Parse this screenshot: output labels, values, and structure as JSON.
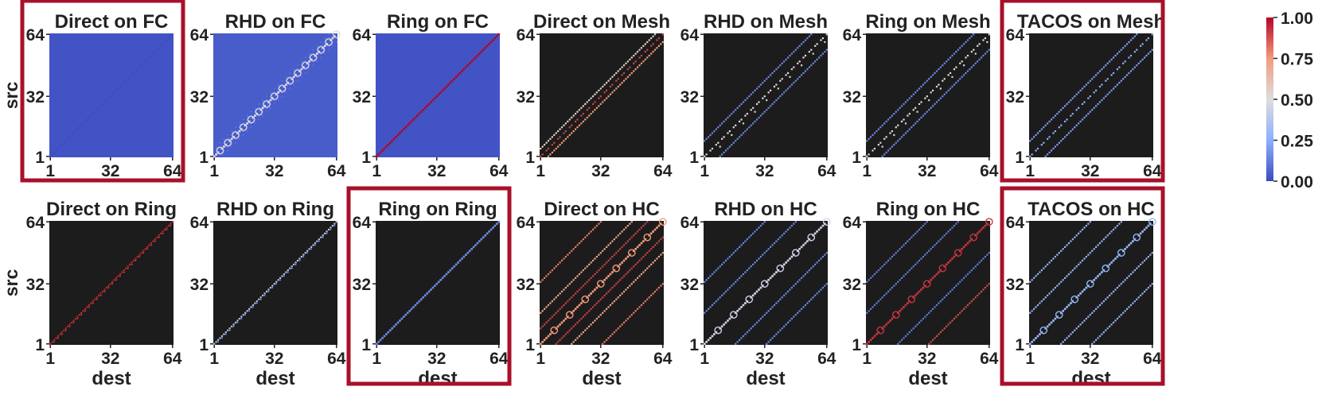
{
  "chart_data": [
    {
      "type": "heatmap",
      "title": "Direct on FC",
      "xlabel": "",
      "ylabel": "src",
      "x_ticks": [
        "1",
        "32",
        "64"
      ],
      "y_ticks": [
        "1",
        "32",
        "64"
      ],
      "x_range": [
        1,
        64
      ],
      "y_range": [
        1,
        64
      ],
      "background_value": 0.02,
      "highlighted": true,
      "bands": [
        {
          "offset": 0,
          "value": 0.0,
          "style": "dots"
        }
      ]
    },
    {
      "type": "heatmap",
      "title": "RHD on FC",
      "xlabel": "",
      "ylabel": "",
      "x_ticks": [
        "1",
        "32",
        "64"
      ],
      "y_ticks": [
        "1",
        "32",
        "64"
      ],
      "x_range": [
        1,
        64
      ],
      "y_range": [
        1,
        64
      ],
      "background_value": 0.04,
      "highlighted": false,
      "bands": [
        {
          "offset": 0,
          "value": 0.5,
          "style": "rings",
          "period": 4
        },
        {
          "offset": 2,
          "value": 0.2,
          "style": "faint"
        },
        {
          "offset": -2,
          "value": 0.2,
          "style": "faint"
        },
        {
          "offset": 4,
          "value": 0.12,
          "style": "faint"
        },
        {
          "offset": -4,
          "value": 0.12,
          "style": "faint"
        }
      ]
    },
    {
      "type": "heatmap",
      "title": "Ring on FC",
      "xlabel": "",
      "ylabel": "",
      "x_ticks": [
        "1",
        "32",
        "64"
      ],
      "y_ticks": [
        "1",
        "32",
        "64"
      ],
      "x_range": [
        1,
        64
      ],
      "y_range": [
        1,
        64
      ],
      "background_value": 0.02,
      "highlighted": false,
      "bands": [
        {
          "offset": 0,
          "value": 1.0,
          "style": "line"
        }
      ]
    },
    {
      "type": "heatmap",
      "title": "Direct on Mesh",
      "xlabel": "",
      "ylabel": "",
      "x_ticks": [
        "1",
        "32",
        "64"
      ],
      "y_ticks": [
        "1",
        "32",
        "64"
      ],
      "x_range": [
        1,
        64
      ],
      "y_range": [
        1,
        64
      ],
      "background_value": null,
      "highlighted": false,
      "bands": [
        {
          "offset": 0,
          "value": 0.9,
          "style": "dashes",
          "period": 3
        },
        {
          "offset": 4,
          "value": 0.75,
          "style": "dots"
        },
        {
          "offset": -4,
          "value": 0.55,
          "style": "dots"
        }
      ]
    },
    {
      "type": "heatmap",
      "title": "RHD on Mesh",
      "xlabel": "",
      "ylabel": "",
      "x_ticks": [
        "1",
        "32",
        "64"
      ],
      "y_ticks": [
        "1",
        "32",
        "64"
      ],
      "x_range": [
        1,
        64
      ],
      "y_range": [
        1,
        64
      ],
      "background_value": null,
      "highlighted": false,
      "bands": [
        {
          "offset": 0,
          "value": 0.5,
          "style": "dashes",
          "period": 3
        },
        {
          "offset": 8,
          "value": 0.15,
          "style": "dots"
        },
        {
          "offset": -8,
          "value": 0.15,
          "style": "dots"
        },
        {
          "offset": 3,
          "value": 0.45,
          "style": "sparse"
        }
      ]
    },
    {
      "type": "heatmap",
      "title": "Ring on Mesh",
      "xlabel": "",
      "ylabel": "",
      "x_ticks": [
        "1",
        "32",
        "64"
      ],
      "y_ticks": [
        "1",
        "32",
        "64"
      ],
      "x_range": [
        1,
        64
      ],
      "y_range": [
        1,
        64
      ],
      "background_value": null,
      "highlighted": false,
      "bands": [
        {
          "offset": 0,
          "value": 0.5,
          "style": "dashes",
          "period": 3
        },
        {
          "offset": 8,
          "value": 0.15,
          "style": "dots"
        },
        {
          "offset": -8,
          "value": 0.15,
          "style": "dots"
        },
        {
          "offset": 3,
          "value": 0.45,
          "style": "sparse"
        }
      ]
    },
    {
      "type": "heatmap",
      "title": "TACOS on Mesh",
      "xlabel": "",
      "ylabel": "",
      "x_ticks": [
        "1",
        "32",
        "64"
      ],
      "y_ticks": [
        "1",
        "32",
        "64"
      ],
      "x_range": [
        1,
        64
      ],
      "y_range": [
        1,
        64
      ],
      "background_value": null,
      "highlighted": true,
      "bands": [
        {
          "offset": 0,
          "value": 0.25,
          "style": "dashes",
          "period": 3
        },
        {
          "offset": 8,
          "value": 0.2,
          "style": "dots"
        },
        {
          "offset": -8,
          "value": 0.2,
          "style": "dots"
        }
      ]
    },
    {
      "type": "heatmap",
      "title": "Direct on Ring",
      "xlabel": "dest",
      "ylabel": "src",
      "x_ticks": [
        "1",
        "32",
        "64"
      ],
      "y_ticks": [
        "1",
        "32",
        "64"
      ],
      "x_range": [
        1,
        64
      ],
      "y_range": [
        1,
        64
      ],
      "background_value": null,
      "highlighted": false,
      "bands": [
        {
          "offset": 0,
          "value": 0.95,
          "style": "dots"
        },
        {
          "offset": 1,
          "value": 0.85,
          "style": "faint"
        }
      ]
    },
    {
      "type": "heatmap",
      "title": "RHD on Ring",
      "xlabel": "dest",
      "ylabel": "",
      "x_ticks": [
        "1",
        "32",
        "64"
      ],
      "y_ticks": [
        "1",
        "32",
        "64"
      ],
      "x_range": [
        1,
        64
      ],
      "y_range": [
        1,
        64
      ],
      "background_value": null,
      "highlighted": false,
      "bands": [
        {
          "offset": 0,
          "value": 0.35,
          "style": "dots"
        },
        {
          "offset": 1,
          "value": 0.3,
          "style": "faint"
        }
      ]
    },
    {
      "type": "heatmap",
      "title": "Ring on Ring",
      "xlabel": "dest",
      "ylabel": "",
      "x_ticks": [
        "1",
        "32",
        "64"
      ],
      "y_ticks": [
        "1",
        "32",
        "64"
      ],
      "x_range": [
        1,
        64
      ],
      "y_range": [
        1,
        64
      ],
      "background_value": null,
      "highlighted": true,
      "bands": [
        {
          "offset": 0,
          "value": 0.15,
          "style": "line"
        }
      ]
    },
    {
      "type": "heatmap",
      "title": "Direct on HC",
      "xlabel": "dest",
      "ylabel": "",
      "x_ticks": [
        "1",
        "32",
        "64"
      ],
      "y_ticks": [
        "1",
        "32",
        "64"
      ],
      "x_range": [
        1,
        64
      ],
      "y_range": [
        1,
        64
      ],
      "background_value": null,
      "highlighted": false,
      "bands": [
        {
          "offset": 0,
          "value": 0.75,
          "style": "rings",
          "period": 8
        },
        {
          "offset": 16,
          "value": 0.7,
          "style": "dots"
        },
        {
          "offset": -16,
          "value": 0.7,
          "style": "dots"
        },
        {
          "offset": 8,
          "value": 0.9,
          "style": "dots"
        },
        {
          "offset": -8,
          "value": 0.9,
          "style": "dots"
        },
        {
          "offset": 32,
          "value": 0.8,
          "style": "dots"
        },
        {
          "offset": -32,
          "value": 0.8,
          "style": "dots"
        }
      ]
    },
    {
      "type": "heatmap",
      "title": "RHD on HC",
      "xlabel": "dest",
      "ylabel": "",
      "x_ticks": [
        "1",
        "32",
        "64"
      ],
      "y_ticks": [
        "1",
        "32",
        "64"
      ],
      "x_range": [
        1,
        64
      ],
      "y_range": [
        1,
        64
      ],
      "background_value": null,
      "highlighted": false,
      "bands": [
        {
          "offset": 0,
          "value": 0.45,
          "style": "rings",
          "period": 8
        },
        {
          "offset": 16,
          "value": 0.15,
          "style": "dots"
        },
        {
          "offset": -16,
          "value": 0.15,
          "style": "dots"
        },
        {
          "offset": 32,
          "value": 0.15,
          "style": "dots"
        },
        {
          "offset": -32,
          "value": 0.15,
          "style": "dots"
        }
      ]
    },
    {
      "type": "heatmap",
      "title": "Ring on HC",
      "xlabel": "dest",
      "ylabel": "",
      "x_ticks": [
        "1",
        "32",
        "64"
      ],
      "y_ticks": [
        "1",
        "32",
        "64"
      ],
      "x_range": [
        1,
        64
      ],
      "y_range": [
        1,
        64
      ],
      "background_value": null,
      "highlighted": false,
      "bands": [
        {
          "offset": 0,
          "value": 0.92,
          "style": "rings",
          "period": 8
        },
        {
          "offset": 16,
          "value": 0.12,
          "style": "dots"
        },
        {
          "offset": -16,
          "value": 0.12,
          "style": "dots"
        },
        {
          "offset": 32,
          "value": 0.88,
          "style": "dots"
        },
        {
          "offset": -32,
          "value": 0.12,
          "style": "dots"
        }
      ]
    },
    {
      "type": "heatmap",
      "title": "TACOS on HC",
      "xlabel": "dest",
      "ylabel": "",
      "x_ticks": [
        "1",
        "32",
        "64"
      ],
      "y_ticks": [
        "1",
        "32",
        "64"
      ],
      "x_range": [
        1,
        64
      ],
      "y_range": [
        1,
        64
      ],
      "background_value": null,
      "highlighted": true,
      "bands": [
        {
          "offset": 0,
          "value": 0.28,
          "style": "rings",
          "period": 8
        },
        {
          "offset": 16,
          "value": 0.28,
          "style": "dots"
        },
        {
          "offset": -16,
          "value": 0.28,
          "style": "dots"
        },
        {
          "offset": 32,
          "value": 0.28,
          "style": "dots"
        },
        {
          "offset": -32,
          "value": 0.28,
          "style": "dots"
        }
      ]
    }
  ],
  "colorbar": {
    "colormap": "coolwarm",
    "range": [
      0.0,
      1.0
    ],
    "ticks": [
      "0.00",
      "0.25",
      "0.50",
      "0.75",
      "1.00"
    ],
    "stops": [
      "#3b4cc0",
      "#8db0fe",
      "#dddddd",
      "#f49a7b",
      "#b40426"
    ]
  },
  "colors": {
    "highlight_border": "#a8102a",
    "no_traffic": "#1c1c1c",
    "text": "#222222"
  }
}
